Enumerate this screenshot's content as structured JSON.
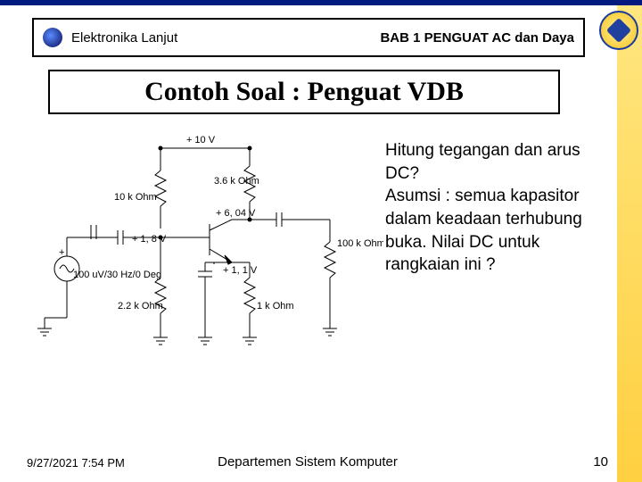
{
  "header": {
    "left": "Elektronika Lanjut",
    "right": "BAB 1 PENGUAT AC dan Daya"
  },
  "title": "Contoh Soal : Penguat VDB",
  "question": "Hitung tegangan dan arus DC?\nAsumsi : semua kapasitor dalam keadaan terhubung buka. Nilai DC untuk rangkaian ini ?",
  "circuit": {
    "supply": "+ 10 V",
    "r1": "10 k Ohm",
    "r2": "2.2 k Ohm",
    "rc": "3.6 k Ohm",
    "re": "1 k Ohm",
    "rl": "100 k Ohm",
    "vc": "+ 6, 04 V",
    "vb": "+ 1, 8 V",
    "ve": "+ 1, 1 V",
    "source": "100 uV/30 Hz/0 Deg"
  },
  "footer": {
    "datetime": "9/27/2021 7:54 PM",
    "department": "Departemen Sistem Komputer",
    "page": "10"
  },
  "colors": {
    "stripe_top": "#ffe680",
    "stripe_bottom": "#ffd040",
    "border": "#000000",
    "top_bar": "#001a80"
  }
}
